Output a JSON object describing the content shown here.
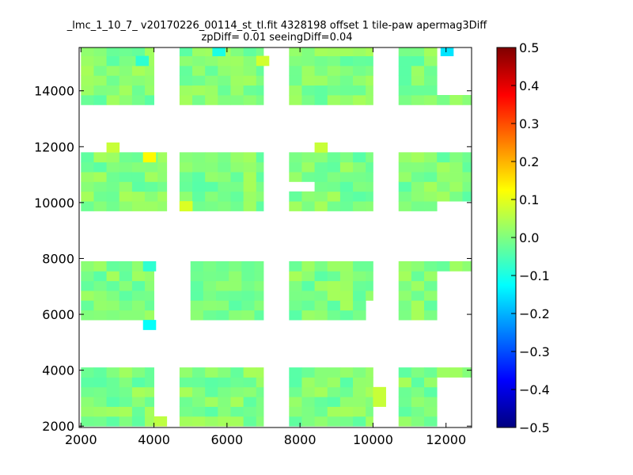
{
  "chart_data": {
    "type": "heatmap",
    "title": "_lmc_1_10_7_ v20170226_00114_st_tl.fit 4328198 offset 1 tile-paw apermag3Diff",
    "subtitle": "zpDiff= 0.01 seeingDiff=0.04",
    "xlim": [
      1950,
      12700
    ],
    "ylim": [
      1950,
      15550
    ],
    "xticks": [
      2000,
      4000,
      6000,
      8000,
      10000,
      12000
    ],
    "yticks": [
      2000,
      4000,
      6000,
      8000,
      10000,
      12000,
      14000
    ],
    "grid": false,
    "colorbar": {
      "colormap": "jet",
      "range": [
        -0.5,
        0.5
      ],
      "ticks": [
        0.5,
        0.4,
        0.3,
        0.2,
        0.1,
        0.0,
        -0.1,
        -0.2,
        -0.3,
        -0.4,
        -0.5
      ],
      "tick_labels": [
        "0.5",
        "0.4",
        "0.3",
        "0.2",
        "0.1",
        "0.0",
        "−0.1",
        "−0.2",
        "−0.3",
        "−0.4",
        "−0.5"
      ]
    },
    "cell_size": 350,
    "blocks": [
      {
        "x": [
          2000,
          4000
        ],
        "y": [
          2000,
          4100
        ],
        "mean": 0.0,
        "amp": 0.04
      },
      {
        "x": [
          4700,
          7000
        ],
        "y": [
          2000,
          4100
        ],
        "mean": 0.0,
        "amp": 0.04
      },
      {
        "x": [
          7700,
          10000
        ],
        "y": [
          2000,
          4100
        ],
        "mean": 0.0,
        "amp": 0.04
      },
      {
        "x": [
          10700,
          12700
        ],
        "y": [
          2000,
          4100
        ],
        "mean": 0.0,
        "amp": 0.04
      },
      {
        "x": [
          2000,
          4000
        ],
        "y": [
          5800,
          7900
        ],
        "mean": 0.0,
        "amp": 0.04
      },
      {
        "x": [
          5000,
          7000
        ],
        "y": [
          5800,
          7900
        ],
        "mean": -0.01,
        "amp": 0.03
      },
      {
        "x": [
          7700,
          10000
        ],
        "y": [
          5800,
          7900
        ],
        "mean": 0.0,
        "amp": 0.04
      },
      {
        "x": [
          10700,
          12700
        ],
        "y": [
          5800,
          7900
        ],
        "mean": 0.0,
        "amp": 0.04
      },
      {
        "x": [
          2000,
          4350
        ],
        "y": [
          9700,
          11800
        ],
        "mean": 0.0,
        "amp": 0.04
      },
      {
        "x": [
          4700,
          7000
        ],
        "y": [
          9700,
          11800
        ],
        "mean": 0.0,
        "amp": 0.04
      },
      {
        "x": [
          7700,
          10000
        ],
        "y": [
          9700,
          11800
        ],
        "mean": 0.0,
        "amp": 0.04
      },
      {
        "x": [
          10700,
          12700
        ],
        "y": [
          9700,
          11800
        ],
        "mean": 0.0,
        "amp": 0.04
      },
      {
        "x": [
          2000,
          4000
        ],
        "y": [
          13500,
          15600
        ],
        "mean": 0.0,
        "amp": 0.04
      },
      {
        "x": [
          4700,
          7000
        ],
        "y": [
          13500,
          15600
        ],
        "mean": 0.0,
        "amp": 0.04
      },
      {
        "x": [
          7700,
          10000
        ],
        "y": [
          13500,
          15600
        ],
        "mean": 0.0,
        "amp": 0.04
      },
      {
        "x": [
          10700,
          12700
        ],
        "y": [
          13500,
          15600
        ],
        "mean": 0.0,
        "amp": 0.04
      }
    ],
    "highlight_cells": [
      {
        "x": 2700,
        "y": 11800,
        "v": 0.07
      },
      {
        "x": 8400,
        "y": 11800,
        "v": 0.07
      },
      {
        "x": 3700,
        "y": 11450,
        "v": 0.13
      },
      {
        "x": 3700,
        "y": 7550,
        "v": -0.08
      },
      {
        "x": 3700,
        "y": 5450,
        "v": -0.12
      },
      {
        "x": 5600,
        "y": 15250,
        "v": -0.1
      },
      {
        "x": 11850,
        "y": 15250,
        "v": -0.15
      },
      {
        "x": 6800,
        "y": 14900,
        "v": 0.08
      },
      {
        "x": 3500,
        "y": 14900,
        "v": -0.08
      },
      {
        "x": 4700,
        "y": 9700,
        "v": 0.09
      },
      {
        "x": 10000,
        "y": 2700,
        "v": 0.07
      },
      {
        "x": 10000,
        "y": 3050,
        "v": 0.07
      },
      {
        "x": 4000,
        "y": 2000,
        "v": 0.06
      }
    ],
    "gaps": [
      {
        "x": [
          11700,
          12700
        ],
        "y": [
          2000,
          3700
        ]
      },
      {
        "x": [
          11700,
          12700
        ],
        "y": [
          5800,
          7550
        ]
      },
      {
        "x": [
          11700,
          12700
        ],
        "y": [
          9700,
          10050
        ]
      },
      {
        "x": [
          11700,
          12700
        ],
        "y": [
          14000,
          15600
        ]
      },
      {
        "x": [
          9700,
          10000
        ],
        "y": [
          5800,
          6500
        ]
      },
      {
        "x": [
          7700,
          8400
        ],
        "y": [
          10400,
          10750
        ]
      }
    ]
  }
}
